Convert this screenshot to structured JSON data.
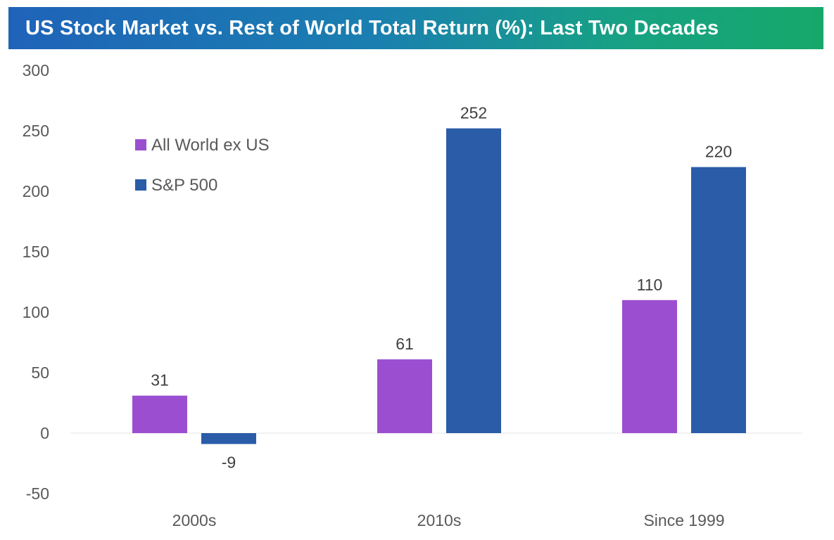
{
  "chart_data": {
    "type": "bar",
    "title": "US Stock Market vs. Rest of World Total Return (%): Last Two Decades",
    "categories": [
      "2000s",
      "2010s",
      "Since 1999"
    ],
    "series": [
      {
        "name": "All World ex US",
        "values": [
          31,
          61,
          110
        ],
        "color": "#9b4fd0"
      },
      {
        "name": "S&P 500",
        "values": [
          -9,
          252,
          220
        ],
        "color": "#2a5ca8"
      }
    ],
    "data_labels": [
      [
        "31",
        "61",
        "110"
      ],
      [
        "-9",
        "252",
        "220"
      ]
    ],
    "y_ticks": [
      "300",
      "250",
      "200",
      "150",
      "100",
      "50",
      "0",
      "-50"
    ],
    "ylim": [
      -50,
      300
    ],
    "xlabel": "",
    "ylabel": "",
    "grid": false,
    "legend_position": "top-left"
  }
}
